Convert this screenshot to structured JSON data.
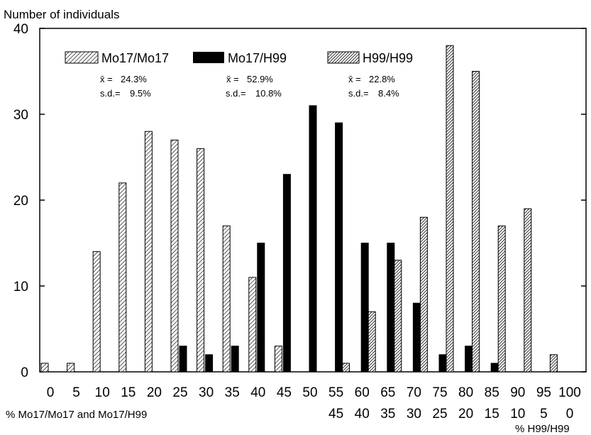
{
  "chart_data": {
    "type": "bar",
    "ylabel": "Number of individuals",
    "xlabel": "% Mo17/Mo17 and Mo17/H99",
    "xlabel2": "% H99/H99",
    "ylim": [
      0,
      40
    ],
    "yticks": [
      "0",
      "10",
      "20",
      "30",
      "40"
    ],
    "categories": [
      "0",
      "5",
      "10",
      "15",
      "20",
      "25",
      "30",
      "35",
      "40",
      "45",
      "50",
      "55",
      "60",
      "65",
      "70",
      "75",
      "80",
      "85",
      "90",
      "95",
      "100"
    ],
    "categories2": [
      "",
      "",
      "",
      "",
      "",
      "",
      "",
      "",
      "",
      "",
      "",
      "45",
      "40",
      "35",
      "30",
      "25",
      "20",
      "15",
      "10",
      "5",
      "0"
    ],
    "series": [
      {
        "name": "Mo17/Mo17",
        "mean": "24.3%",
        "sd": "9.5%",
        "values": [
          1,
          1,
          14,
          22,
          28,
          27,
          26,
          17,
          11,
          3,
          0,
          0,
          0,
          0,
          0,
          0,
          0,
          0,
          0,
          0,
          0
        ]
      },
      {
        "name": "Mo17/H99",
        "mean": "52.9%",
        "sd": "10.8%",
        "values": [
          0,
          0,
          0,
          0,
          0,
          3,
          2,
          3,
          15,
          23,
          31,
          29,
          15,
          15,
          8,
          2,
          3,
          1,
          0,
          0,
          0
        ]
      },
      {
        "name": "H99/H99",
        "mean": "22.8%",
        "sd": "8.4%",
        "values": [
          0,
          0,
          0,
          0,
          0,
          0,
          0,
          0,
          0,
          0,
          0,
          1,
          7,
          13,
          18,
          38,
          35,
          17,
          19,
          2,
          0
        ]
      }
    ],
    "stat_labels": {
      "mean": "x̄ =",
      "sd": "s.d.="
    },
    "grid": false,
    "legend": "top"
  }
}
